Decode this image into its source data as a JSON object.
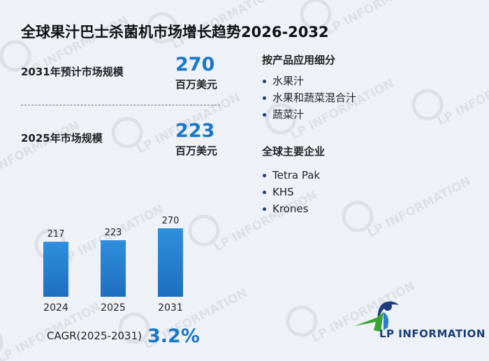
{
  "title": "全球果汁巴士杀菌机市场增长趋势2026-2032",
  "metrics": [
    {
      "label": "2031年预计市场规模",
      "value": "270",
      "unit": "百万美元"
    },
    {
      "label": "2025年市场规模",
      "value": "223",
      "unit": "百万美元"
    }
  ],
  "segments": {
    "heading": "按产品应用细分",
    "items": [
      "水果汁",
      "水果和蔬菜混合汁",
      "蔬菜汁"
    ]
  },
  "companies": {
    "heading": "全球主要企业",
    "items": [
      "Tetra Pak",
      "KHS",
      "Krones"
    ]
  },
  "cagr": {
    "label": "CAGR(2025-2031)",
    "value": "3.2%"
  },
  "logo": {
    "text": "LP INFORMATION"
  },
  "watermark": {
    "text": "LP INFORMATION"
  },
  "colors": {
    "accent": "#1a78c8",
    "bar_top": "#2e8fdc",
    "bar_bottom": "#1e6fbf",
    "logo_green": "#3aa335",
    "logo_blue": "#1a3e7c"
  },
  "chart_data": {
    "type": "bar",
    "categories": [
      "2024",
      "2025",
      "2031"
    ],
    "values": [
      217,
      223,
      270
    ],
    "title": "",
    "xlabel": "",
    "ylabel": "",
    "grid": false,
    "data_labels": true
  }
}
